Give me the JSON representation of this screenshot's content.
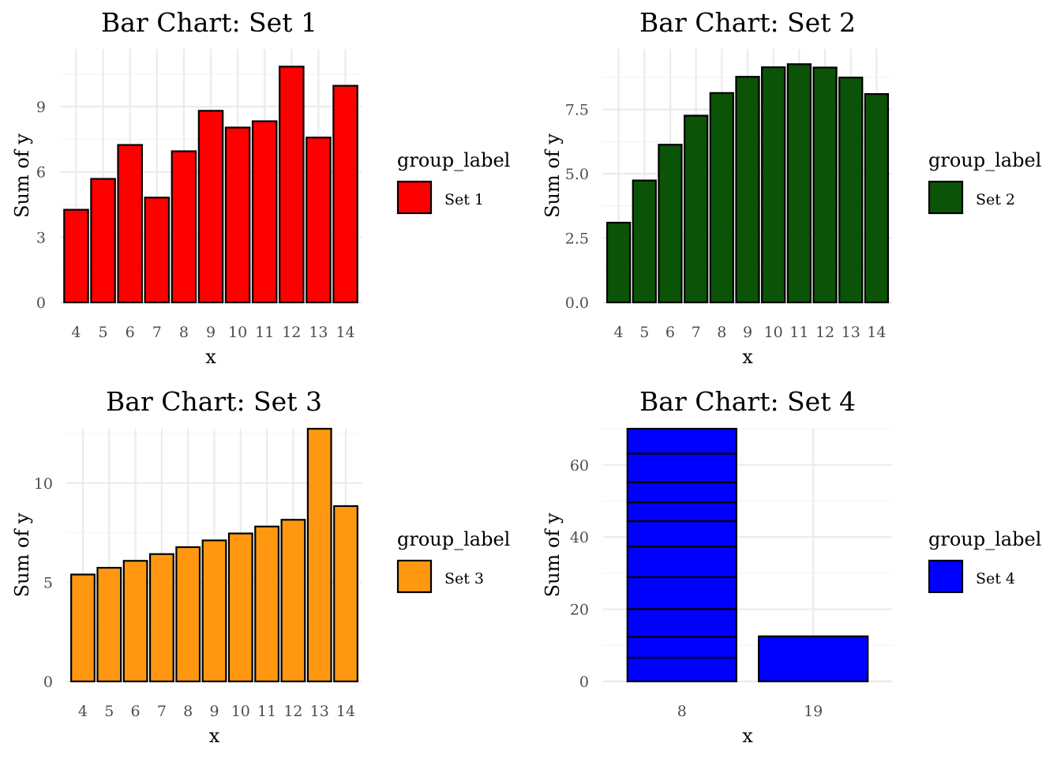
{
  "chart_data": [
    {
      "type": "bar",
      "title": "Bar Chart:  Set 1",
      "xlabel": "x",
      "ylabel": "Sum of y",
      "categories": [
        "4",
        "5",
        "6",
        "7",
        "8",
        "9",
        "10",
        "11",
        "12",
        "13",
        "14"
      ],
      "values": [
        4.26,
        5.68,
        7.24,
        4.82,
        6.95,
        8.81,
        8.04,
        8.33,
        10.84,
        7.58,
        9.96
      ],
      "ylim": [
        0,
        11
      ],
      "yticks": [
        0,
        3,
        6,
        9
      ],
      "ytick_labels": [
        "0",
        "3",
        "6",
        "9"
      ],
      "fill": "#ff0000",
      "legend": {
        "title": "group_label",
        "label": "Set 1",
        "position": "right"
      }
    },
    {
      "type": "bar",
      "title": "Bar Chart:  Set 2",
      "xlabel": "x",
      "ylabel": "Sum of y",
      "categories": [
        "4",
        "5",
        "6",
        "7",
        "8",
        "9",
        "10",
        "11",
        "12",
        "13",
        "14"
      ],
      "values": [
        3.1,
        4.74,
        6.13,
        7.26,
        8.14,
        8.77,
        9.14,
        9.26,
        9.13,
        8.74,
        8.1
      ],
      "ylim": [
        0,
        9.3
      ],
      "yticks": [
        0,
        2.5,
        5,
        7.5
      ],
      "ytick_labels": [
        "0.0",
        "2.5",
        "5.0",
        "7.5"
      ],
      "fill": "#0b5307",
      "legend": {
        "title": "group_label",
        "label": "Set 2",
        "position": "right"
      }
    },
    {
      "type": "bar",
      "title": "Bar Chart:  Set 3",
      "xlabel": "x",
      "ylabel": "Sum of y",
      "categories": [
        "4",
        "5",
        "6",
        "7",
        "8",
        "9",
        "10",
        "11",
        "12",
        "13",
        "14"
      ],
      "values": [
        5.39,
        5.73,
        6.08,
        6.42,
        6.77,
        7.11,
        7.46,
        7.81,
        8.15,
        12.74,
        8.84
      ],
      "ylim": [
        0,
        12.74
      ],
      "yticks": [
        0,
        5,
        10
      ],
      "ytick_labels": [
        "0",
        "5",
        "10"
      ],
      "fill": "#ff9810",
      "legend": {
        "title": "group_label",
        "label": "Set 3",
        "position": "right"
      }
    },
    {
      "type": "bar",
      "title": "Bar Chart:  Set 4",
      "xlabel": "x",
      "ylabel": "Sum of y",
      "categories": [
        "8",
        "19"
      ],
      "stacked": true,
      "stacks": [
        [
          6.58,
          5.76,
          7.71,
          8.84,
          8.47,
          7.04,
          5.25,
          5.56,
          7.91,
          6.89
        ],
        [
          12.5
        ]
      ],
      "values": [
        70.01,
        12.5
      ],
      "ylim": [
        0,
        70.01
      ],
      "yticks": [
        0,
        20,
        40,
        60
      ],
      "ytick_labels": [
        "0",
        "20",
        "40",
        "60"
      ],
      "fill": "#0000ff",
      "legend": {
        "title": "group_label",
        "label": "Set 4",
        "position": "right"
      }
    }
  ]
}
